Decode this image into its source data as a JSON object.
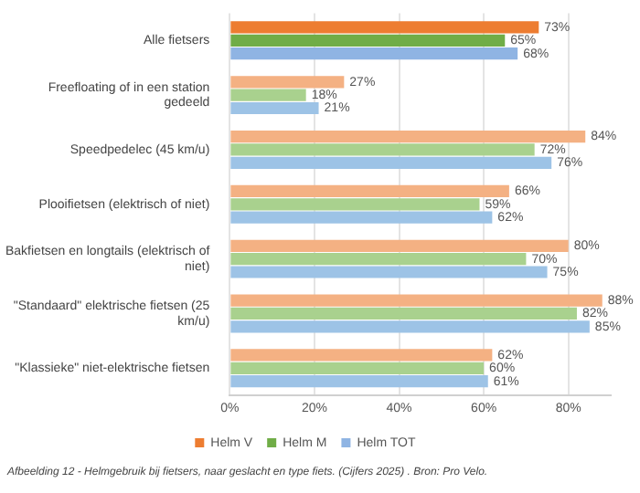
{
  "chart_data": {
    "type": "bar",
    "orientation": "horizontal",
    "categories": [
      "Alle fietsers",
      "Freefloating of in een station gedeeld",
      "Speedpedelec (45 km/u)",
      "Plooifietsen (elektrisch of niet)",
      "Bakfietsen en longtails (elektrisch of niet)",
      "\"Standaard\" elektrische fietsen (25 km/u)",
      "\"Klassieke\" niet-elektrische fietsen"
    ],
    "series": [
      {
        "name": "Helm V",
        "colors": [
          "#ed7d31",
          "#f4b183",
          "#f4b183",
          "#f4b183",
          "#f4b183",
          "#f4b183",
          "#f4b183"
        ],
        "values": [
          73,
          27,
          84,
          66,
          80,
          88,
          62
        ],
        "value_labels": [
          "73%",
          "27%",
          "84%",
          "66%",
          "80%",
          "88%",
          "62%"
        ]
      },
      {
        "name": "Helm M",
        "colors": [
          "#70ad47",
          "#a9d18e",
          "#a9d18e",
          "#a9d18e",
          "#a9d18e",
          "#a9d18e",
          "#a9d18e"
        ],
        "values": [
          65,
          18,
          72,
          59,
          70,
          82,
          60
        ],
        "value_labels": [
          "65%",
          "18%",
          "72%",
          "59%",
          "70%",
          "82%",
          "60%"
        ]
      },
      {
        "name": "Helm TOT",
        "colors": [
          "#8fb4e3",
          "#9dc3e6",
          "#9dc3e6",
          "#9dc3e6",
          "#9dc3e6",
          "#9dc3e6",
          "#9dc3e6"
        ],
        "values": [
          68,
          21,
          76,
          62,
          75,
          85,
          61
        ],
        "value_labels": [
          "68%",
          "21%",
          "76%",
          "62%",
          "75%",
          "85%",
          "61%"
        ]
      }
    ],
    "xlim": [
      0,
      90
    ],
    "xticks": [
      {
        "value": 0,
        "label": "0%"
      },
      {
        "value": 20,
        "label": "20%"
      },
      {
        "value": 40,
        "label": "40%"
      },
      {
        "value": 60,
        "label": "60%"
      },
      {
        "value": 80,
        "label": "80%"
      }
    ],
    "grid": "x",
    "legend": "bottom",
    "annotations": [
      "Afbeelding 12 - Helmgebruik bij fietsers, naar geslacht en type fiets. (Cijfers 2025) . Bron: Pro Velo."
    ]
  }
}
